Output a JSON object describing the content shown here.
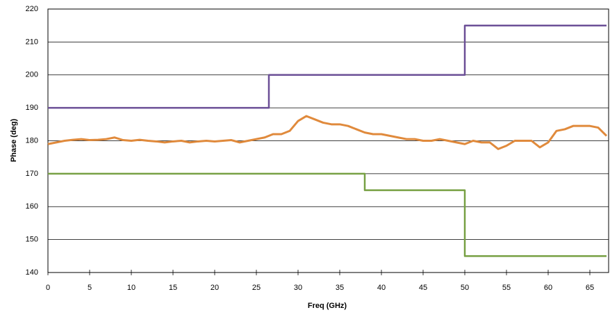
{
  "chart_data": {
    "type": "line",
    "x_label": "Freq (GHz)",
    "y_label": "Phase (deg)",
    "xlim": [
      0,
      67
    ],
    "ylim": [
      140,
      220
    ],
    "xticks": [
      0,
      5,
      10,
      15,
      20,
      25,
      30,
      35,
      40,
      45,
      50,
      55,
      60,
      65
    ],
    "yticks": [
      140,
      150,
      160,
      170,
      180,
      190,
      200,
      210,
      220
    ],
    "grid": true,
    "series": [
      {
        "color": "#6b4f96",
        "x": [
          0,
          26.5,
          26.5,
          50,
          50,
          67
        ],
        "values": [
          190,
          190,
          200,
          200,
          215,
          215
        ]
      },
      {
        "color": "#77a043",
        "x": [
          0,
          38,
          38,
          50,
          50,
          67
        ],
        "values": [
          170,
          170,
          165,
          165,
          145,
          145
        ]
      },
      {
        "color": "#e08a3c",
        "x": [
          0,
          1,
          2,
          3,
          4,
          5,
          6,
          7,
          8,
          9,
          10,
          11,
          12,
          13,
          14,
          15,
          16,
          17,
          18,
          19,
          20,
          21,
          22,
          23,
          24,
          25,
          26,
          27,
          28,
          29,
          30,
          31,
          32,
          33,
          34,
          35,
          36,
          37,
          38,
          39,
          40,
          41,
          42,
          43,
          44,
          45,
          46,
          47,
          48,
          49,
          50,
          51,
          52,
          53,
          54,
          55,
          56,
          57,
          58,
          59,
          60,
          61,
          62,
          63,
          64,
          65,
          66,
          67
        ],
        "values": [
          179,
          179.5,
          180,
          180.3,
          180.5,
          180.2,
          180.3,
          180.5,
          181,
          180.2,
          180,
          180.3,
          180,
          179.8,
          179.5,
          179.8,
          180,
          179.5,
          179.8,
          180,
          179.8,
          180,
          180.2,
          179.5,
          180,
          180.5,
          181,
          182,
          182,
          183,
          186,
          187.5,
          186.5,
          185.5,
          185,
          185,
          184.5,
          183.5,
          182.5,
          182,
          182,
          181.5,
          181,
          180.5,
          180.5,
          180,
          180,
          180.5,
          180,
          179.5,
          179,
          180,
          179.5,
          179.5,
          177.5,
          178.5,
          180,
          180,
          180,
          178,
          179.5,
          183,
          183.5,
          184.5,
          184.5,
          184.5,
          184,
          181.5
        ]
      }
    ]
  }
}
